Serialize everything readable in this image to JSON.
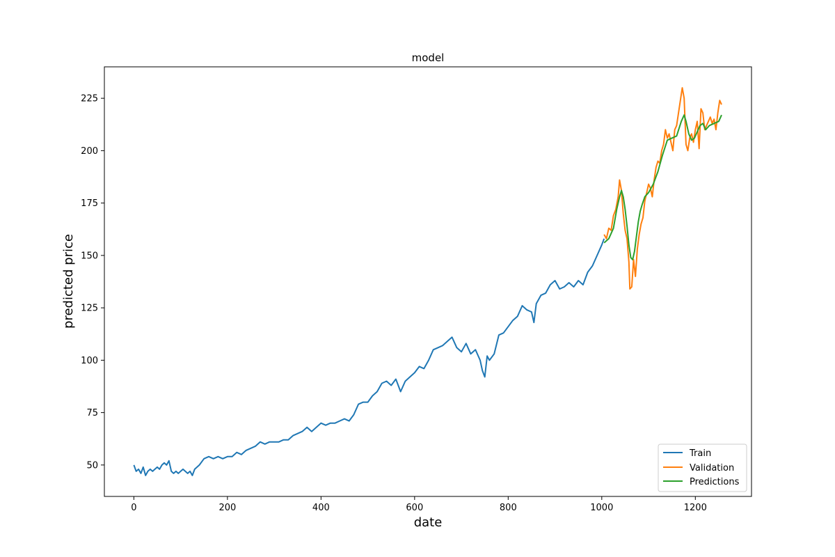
{
  "chart_data": {
    "type": "line",
    "title": "model",
    "xlabel": "date",
    "ylabel": "predicted price",
    "xlim": [
      -63,
      1320
    ],
    "ylim": [
      35,
      240
    ],
    "xticks": [
      0,
      200,
      400,
      600,
      800,
      1000,
      1200
    ],
    "yticks": [
      50,
      75,
      100,
      125,
      150,
      175,
      200,
      225
    ],
    "grid": false,
    "legend_position": "bottom-right",
    "series": [
      {
        "name": "Train",
        "color": "#1f77b4",
        "x": [
          0,
          5,
          10,
          15,
          20,
          25,
          30,
          35,
          40,
          45,
          50,
          55,
          60,
          65,
          70,
          75,
          80,
          85,
          90,
          95,
          100,
          105,
          110,
          115,
          120,
          125,
          130,
          140,
          150,
          160,
          170,
          180,
          190,
          200,
          210,
          220,
          230,
          240,
          250,
          260,
          270,
          280,
          290,
          300,
          310,
          320,
          330,
          340,
          350,
          360,
          370,
          380,
          390,
          400,
          410,
          420,
          430,
          440,
          450,
          460,
          470,
          480,
          490,
          500,
          510,
          520,
          530,
          540,
          550,
          560,
          570,
          580,
          590,
          600,
          610,
          620,
          630,
          640,
          650,
          660,
          670,
          680,
          690,
          700,
          710,
          720,
          730,
          740,
          745,
          750,
          755,
          760,
          770,
          780,
          790,
          800,
          810,
          820,
          830,
          840,
          850,
          855,
          860,
          870,
          880,
          890,
          900,
          910,
          920,
          930,
          940,
          950,
          960,
          970,
          980,
          990,
          1000,
          1005
        ],
        "values": [
          50,
          47,
          48,
          46,
          49,
          45,
          47,
          48,
          47,
          48,
          49,
          48,
          50,
          51,
          50,
          52,
          47,
          46,
          47,
          46,
          47,
          48,
          47,
          46,
          47,
          45,
          48,
          50,
          53,
          54,
          53,
          54,
          53,
          54,
          54,
          56,
          55,
          57,
          58,
          59,
          61,
          60,
          61,
          61,
          61,
          62,
          62,
          64,
          65,
          66,
          68,
          66,
          68,
          70,
          69,
          70,
          70,
          71,
          72,
          71,
          74,
          79,
          80,
          80,
          83,
          85,
          89,
          90,
          88,
          91,
          85,
          90,
          92,
          94,
          97,
          96,
          100,
          105,
          106,
          107,
          109,
          111,
          106,
          104,
          108,
          103,
          105,
          100,
          95,
          92,
          102,
          100,
          103,
          112,
          113,
          116,
          119,
          121,
          126,
          124,
          123,
          118,
          127,
          131,
          132,
          136,
          138,
          134,
          135,
          137,
          135,
          138,
          136,
          142,
          145,
          150,
          155,
          158
        ]
      },
      {
        "name": "Validation",
        "color": "#ff7f0e",
        "x": [
          1005,
          1010,
          1015,
          1020,
          1025,
          1030,
          1035,
          1038,
          1042,
          1046,
          1050,
          1054,
          1058,
          1060,
          1064,
          1068,
          1072,
          1076,
          1080,
          1084,
          1088,
          1092,
          1096,
          1100,
          1104,
          1108,
          1112,
          1116,
          1120,
          1124,
          1128,
          1132,
          1136,
          1140,
          1144,
          1148,
          1152,
          1156,
          1160,
          1164,
          1168,
          1172,
          1176,
          1180,
          1184,
          1188,
          1192,
          1196,
          1200,
          1204,
          1208,
          1212,
          1216,
          1220,
          1224,
          1228,
          1232,
          1236,
          1240,
          1244,
          1248,
          1252,
          1256
        ],
        "values": [
          160,
          158,
          163,
          162,
          169,
          172,
          178,
          186,
          181,
          170,
          162,
          158,
          147,
          134,
          135,
          148,
          140,
          153,
          160,
          165,
          168,
          176,
          180,
          184,
          182,
          178,
          186,
          192,
          195,
          194,
          200,
          203,
          210,
          206,
          208,
          204,
          200,
          210,
          212,
          218,
          224,
          230,
          225,
          203,
          200,
          206,
          208,
          204,
          210,
          214,
          201,
          220,
          218,
          210,
          212,
          214,
          216,
          213,
          215,
          210,
          218,
          224,
          222
        ]
      },
      {
        "name": "Predictions",
        "color": "#2ca02c",
        "x": [
          1005,
          1015,
          1025,
          1032,
          1038,
          1042,
          1046,
          1050,
          1054,
          1058,
          1062,
          1066,
          1070,
          1074,
          1078,
          1082,
          1086,
          1092,
          1100,
          1110,
          1120,
          1130,
          1140,
          1150,
          1160,
          1170,
          1176,
          1180,
          1186,
          1192,
          1198,
          1204,
          1210,
          1216,
          1222,
          1230,
          1240,
          1250,
          1256
        ],
        "values": [
          156,
          158,
          163,
          172,
          178,
          181,
          178,
          172,
          164,
          155,
          149,
          148,
          152,
          159,
          166,
          171,
          174,
          178,
          180,
          184,
          190,
          198,
          205,
          206,
          207,
          214,
          217,
          214,
          208,
          205,
          206,
          209,
          212,
          213,
          210,
          212,
          213,
          214,
          217
        ]
      }
    ]
  }
}
